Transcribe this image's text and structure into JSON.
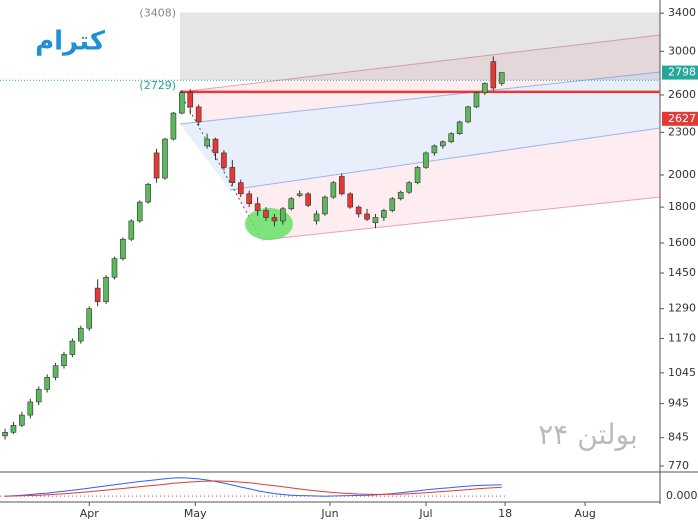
{
  "chart_data": {
    "type": "candlestick",
    "title": "کترام",
    "watermark": "بولتن ۲۴",
    "log_scale": true,
    "up_color": "#5cb85c",
    "down_color": "#e53935",
    "ohlc": [
      [
        850,
        870,
        840,
        860
      ],
      [
        860,
        890,
        855,
        880
      ],
      [
        880,
        920,
        875,
        910
      ],
      [
        910,
        960,
        900,
        950
      ],
      [
        950,
        1000,
        940,
        990
      ],
      [
        990,
        1040,
        980,
        1030
      ],
      [
        1030,
        1080,
        1020,
        1070
      ],
      [
        1070,
        1120,
        1060,
        1110
      ],
      [
        1110,
        1170,
        1100,
        1160
      ],
      [
        1160,
        1220,
        1150,
        1210
      ],
      [
        1210,
        1300,
        1200,
        1290
      ],
      [
        1380,
        1420,
        1300,
        1320
      ],
      [
        1320,
        1440,
        1310,
        1430
      ],
      [
        1430,
        1530,
        1420,
        1520
      ],
      [
        1520,
        1630,
        1510,
        1620
      ],
      [
        1620,
        1730,
        1610,
        1720
      ],
      [
        1720,
        1840,
        1710,
        1830
      ],
      [
        1830,
        1950,
        1820,
        1940
      ],
      [
        2150,
        2180,
        1950,
        1980
      ],
      [
        1980,
        2260,
        1970,
        2250
      ],
      [
        2250,
        2460,
        2240,
        2450
      ],
      [
        2450,
        2640,
        2440,
        2620
      ],
      [
        2620,
        2650,
        2440,
        2500
      ],
      [
        2500,
        2520,
        2350,
        2380
      ],
      [
        2200,
        2290,
        2180,
        2250
      ],
      [
        2250,
        2260,
        2100,
        2150
      ],
      [
        2150,
        2170,
        2030,
        2050
      ],
      [
        2050,
        2100,
        1930,
        1950
      ],
      [
        1950,
        1970,
        1860,
        1880
      ],
      [
        1880,
        1900,
        1800,
        1820
      ],
      [
        1820,
        1860,
        1750,
        1780
      ],
      [
        1780,
        1800,
        1720,
        1740
      ],
      [
        1740,
        1760,
        1690,
        1720
      ],
      [
        1720,
        1800,
        1700,
        1790
      ],
      [
        1790,
        1860,
        1780,
        1850
      ],
      [
        1870,
        1900,
        1860,
        1880
      ],
      [
        1880,
        1890,
        1800,
        1810
      ],
      [
        1720,
        1780,
        1700,
        1760
      ],
      [
        1760,
        1870,
        1750,
        1860
      ],
      [
        1860,
        1960,
        1850,
        1950
      ],
      [
        1990,
        2010,
        1870,
        1880
      ],
      [
        1880,
        1890,
        1790,
        1800
      ],
      [
        1800,
        1810,
        1740,
        1760
      ],
      [
        1760,
        1790,
        1720,
        1730
      ],
      [
        1710,
        1760,
        1680,
        1740
      ],
      [
        1740,
        1790,
        1720,
        1780
      ],
      [
        1780,
        1860,
        1770,
        1850
      ],
      [
        1850,
        1900,
        1840,
        1890
      ],
      [
        1890,
        1960,
        1880,
        1950
      ],
      [
        1950,
        2060,
        1940,
        2050
      ],
      [
        2050,
        2160,
        2040,
        2150
      ],
      [
        2150,
        2210,
        2130,
        2200
      ],
      [
        2200,
        2240,
        2180,
        2230
      ],
      [
        2230,
        2300,
        2220,
        2290
      ],
      [
        2290,
        2390,
        2280,
        2380
      ],
      [
        2380,
        2510,
        2370,
        2500
      ],
      [
        2500,
        2630,
        2490,
        2620
      ],
      [
        2620,
        2710,
        2600,
        2700
      ],
      [
        2900,
        2950,
        2640,
        2660
      ],
      [
        2700,
        2800,
        2680,
        2798
      ]
    ],
    "xlim": [
      -0.6,
      77.8
    ],
    "xticks": [
      {
        "value": 10,
        "label": "Apr"
      },
      {
        "value": 22.6,
        "label": "May"
      },
      {
        "value": 38.6,
        "label": "Jun"
      },
      {
        "value": 50,
        "label": "Jul"
      },
      {
        "value": 59.4,
        "label": "18"
      },
      {
        "value": 68.9,
        "label": "Aug"
      }
    ],
    "ylim": [
      760,
      3550
    ],
    "yticks": [
      770,
      845,
      945,
      1045,
      1170,
      1290,
      1450,
      1600,
      1800,
      2000,
      2300,
      2600,
      3000,
      3400
    ],
    "last_price": 2798,
    "resistance": 2627,
    "range_box": [
      {
        "value": 2729,
        "label": "(2729)"
      },
      {
        "value": 3408,
        "label": "(3408)"
      }
    ],
    "indicator": {
      "ylim": [
        -20,
        220
      ],
      "yticks": [
        {
          "value": 0,
          "label": "0.0000"
        }
      ],
      "lines": [
        {
          "color": "#2962ff",
          "values": [
            0,
            5,
            10,
            18,
            26,
            34,
            44,
            54,
            64,
            76,
            88,
            100,
            112,
            124,
            136,
            148,
            160,
            170,
            180,
            190,
            198,
            200,
            196,
            188,
            176,
            160,
            142,
            122,
            100,
            80,
            60,
            42,
            28,
            18,
            10,
            6,
            4,
            2,
            0,
            2,
            4,
            6,
            8,
            10,
            14,
            20,
            28,
            38,
            48,
            58,
            68,
            78,
            86,
            94,
            102,
            110,
            116,
            120,
            122,
            124
          ]
        },
        {
          "color": "#e53935",
          "values": [
            0,
            2,
            4,
            7,
            11,
            15,
            21,
            27,
            34,
            41,
            49,
            57,
            66,
            75,
            84,
            93,
            103,
            112,
            121,
            131,
            140,
            148,
            155,
            160,
            164,
            165,
            164,
            160,
            154,
            146,
            136,
            125,
            114,
            102,
            90,
            78,
            67,
            57,
            48,
            40,
            33,
            28,
            24,
            21,
            19,
            19,
            20,
            23,
            27,
            32,
            38,
            44,
            51,
            58,
            65,
            72,
            79,
            86,
            92,
            98
          ]
        }
      ]
    }
  }
}
